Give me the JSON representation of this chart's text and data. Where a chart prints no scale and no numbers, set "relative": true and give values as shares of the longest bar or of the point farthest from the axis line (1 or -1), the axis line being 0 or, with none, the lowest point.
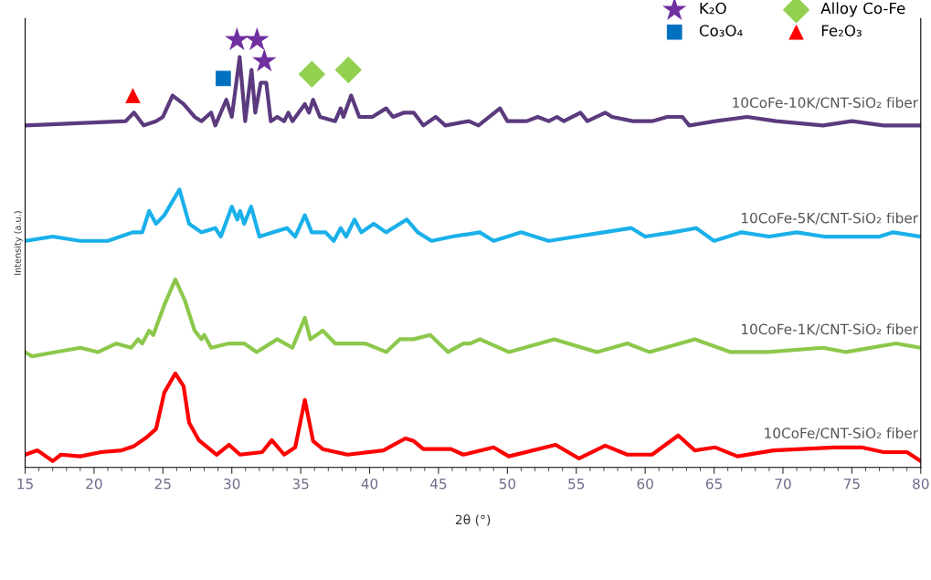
{
  "chart_data": {
    "type": "line",
    "relative": true,
    "xlabel": "2θ (°)",
    "ylabel": "Intensity (a.u.)",
    "xlim": [
      15,
      80
    ],
    "xticks": [
      15,
      20,
      25,
      30,
      35,
      40,
      45,
      50,
      55,
      60,
      65,
      70,
      75,
      80
    ],
    "grid": false,
    "legend": "top right",
    "line_style": "solid",
    "series": [
      {
        "name": "10CoFe-10K/CNT-SiO₂ fiber",
        "color": "#5b3a7e",
        "x": [
          15,
          22.3,
          22.9,
          23.6,
          24.5,
          25.0,
          25.7,
          26.5,
          27.3,
          27.8,
          28.5,
          28.8,
          29.6,
          30.0,
          30.57,
          30.97,
          31.43,
          31.7,
          32.1,
          32.5,
          32.83,
          33.3,
          33.8,
          34.1,
          34.4,
          35.3,
          35.6,
          35.9,
          36.4,
          37.5,
          37.9,
          38.1,
          38.66,
          39.25,
          40.2,
          41.2,
          41.7,
          42.5,
          43.2,
          43.9,
          44.8,
          45.5,
          47.2,
          47.9,
          49.46,
          50.0,
          51.4,
          52.2,
          53.0,
          53.6,
          54.1,
          55.3,
          55.8,
          57.1,
          57.6,
          59.1,
          60.5,
          61.6,
          62.7,
          63.2,
          65.1,
          67.4,
          69.5,
          72.9,
          75.0,
          77.3,
          80
        ],
        "values": [
          0.8,
          0.81,
          0.83,
          0.8,
          0.81,
          0.82,
          0.87,
          0.85,
          0.82,
          0.81,
          0.83,
          0.8,
          0.86,
          0.82,
          0.96,
          0.81,
          0.93,
          0.83,
          0.9,
          0.9,
          0.81,
          0.82,
          0.81,
          0.83,
          0.81,
          0.85,
          0.83,
          0.86,
          0.82,
          0.81,
          0.84,
          0.82,
          0.87,
          0.82,
          0.82,
          0.84,
          0.82,
          0.83,
          0.83,
          0.8,
          0.82,
          0.8,
          0.81,
          0.8,
          0.84,
          0.81,
          0.81,
          0.82,
          0.81,
          0.82,
          0.81,
          0.83,
          0.81,
          0.83,
          0.82,
          0.81,
          0.81,
          0.82,
          0.82,
          0.8,
          0.81,
          0.82,
          0.81,
          0.8,
          0.81,
          0.8,
          0.8
        ]
      },
      {
        "name": "10CoFe-5K/CNT-SiO₂ fiber",
        "color": "#1ab0ea",
        "x": [
          15,
          17,
          19,
          21,
          22.8,
          23.5,
          24.0,
          24.5,
          25.1,
          26.2,
          26.9,
          27.8,
          28.8,
          29.2,
          30.0,
          30.4,
          30.6,
          30.9,
          31.4,
          32.0,
          33,
          34,
          34.6,
          35.3,
          35.8,
          36.8,
          37.4,
          37.9,
          38.3,
          38.9,
          39.4,
          40.3,
          41.2,
          42.7,
          43.5,
          44.5,
          46,
          48,
          49,
          51,
          53,
          55,
          57,
          59,
          60,
          62,
          63.7,
          65,
          67,
          69,
          71,
          73,
          75,
          77,
          78,
          80
        ],
        "values": [
          0.53,
          0.54,
          0.53,
          0.53,
          0.55,
          0.55,
          0.6,
          0.57,
          0.59,
          0.65,
          0.57,
          0.55,
          0.56,
          0.54,
          0.61,
          0.58,
          0.6,
          0.57,
          0.61,
          0.54,
          0.55,
          0.56,
          0.54,
          0.59,
          0.55,
          0.55,
          0.53,
          0.56,
          0.54,
          0.58,
          0.55,
          0.57,
          0.55,
          0.58,
          0.55,
          0.53,
          0.54,
          0.55,
          0.53,
          0.55,
          0.53,
          0.54,
          0.55,
          0.56,
          0.54,
          0.55,
          0.56,
          0.53,
          0.55,
          0.54,
          0.55,
          0.54,
          0.54,
          0.54,
          0.55,
          0.54
        ]
      },
      {
        "name": "10CoFe-1K/CNT-SiO₂ fiber",
        "color": "#8cc84b",
        "x": [
          15,
          15.5,
          17.2,
          19.0,
          20.3,
          21.6,
          22.7,
          23.2,
          23.5,
          24.0,
          24.3,
          25.1,
          25.9,
          26.6,
          27.3,
          27.8,
          28.0,
          28.5,
          29.8,
          30.9,
          31.8,
          33.3,
          34.4,
          35.3,
          35.7,
          36.6,
          37.5,
          39.7,
          41.2,
          42.2,
          43.2,
          44.4,
          45.7,
          46.8,
          47.3,
          48.0,
          50.1,
          53.4,
          56.5,
          58.7,
          60.3,
          63.6,
          66.2,
          68.9,
          72.9,
          74.6,
          78.2,
          80
        ],
        "values": [
          0.27,
          0.26,
          0.27,
          0.28,
          0.27,
          0.29,
          0.28,
          0.3,
          0.29,
          0.32,
          0.31,
          0.38,
          0.44,
          0.39,
          0.32,
          0.3,
          0.31,
          0.28,
          0.29,
          0.29,
          0.27,
          0.3,
          0.28,
          0.35,
          0.3,
          0.32,
          0.29,
          0.29,
          0.27,
          0.3,
          0.3,
          0.31,
          0.27,
          0.29,
          0.29,
          0.3,
          0.27,
          0.3,
          0.27,
          0.29,
          0.27,
          0.3,
          0.27,
          0.27,
          0.28,
          0.27,
          0.29,
          0.28
        ]
      },
      {
        "name": "10CoFe/CNT-SiO₂ fiber",
        "color": "#ff0000",
        "x": [
          15,
          15.9,
          17.0,
          17.6,
          19.0,
          20.5,
          22.0,
          22.9,
          23.8,
          24.5,
          25.1,
          25.9,
          26.5,
          26.9,
          27.6,
          28.9,
          29.8,
          30.6,
          32.2,
          32.9,
          33.8,
          34.6,
          35.3,
          35.9,
          36.6,
          38.4,
          41.0,
          42.6,
          43.2,
          43.9,
          45.9,
          46.8,
          49.0,
          50.1,
          53.5,
          55.2,
          57.1,
          58.7,
          60.5,
          62.4,
          63.6,
          65.1,
          66.7,
          69.3,
          73.7,
          75.7,
          77.3,
          79.0,
          80
        ],
        "values": [
          0.03,
          0.04,
          0.015,
          0.03,
          0.026,
          0.036,
          0.04,
          0.05,
          0.07,
          0.09,
          0.175,
          0.22,
          0.19,
          0.105,
          0.064,
          0.03,
          0.053,
          0.03,
          0.036,
          0.064,
          0.03,
          0.047,
          0.158,
          0.062,
          0.043,
          0.03,
          0.04,
          0.068,
          0.062,
          0.043,
          0.043,
          0.03,
          0.047,
          0.026,
          0.053,
          0.021,
          0.051,
          0.03,
          0.03,
          0.075,
          0.04,
          0.047,
          0.026,
          0.04,
          0.047,
          0.047,
          0.036,
          0.036,
          0.015
        ]
      },
      {
        "type": "scatter",
        "name": "K₂O",
        "color": "#7030a0",
        "marker": "star",
        "x": [
          30.37,
          31.83,
          32.36
        ],
        "values": [
          1.0,
          1.0,
          0.95
        ]
      },
      {
        "type": "scatter",
        "name": "Co₃O₄",
        "color": "#0070c0",
        "marker": "square",
        "x": [
          29.38
        ],
        "values": [
          0.91
        ]
      },
      {
        "type": "scatter",
        "name": "Alloy Co-Fe",
        "color": "#92d050",
        "marker": "diamond",
        "x": [
          35.81,
          38.46
        ],
        "values": [
          0.92,
          0.93
        ]
      },
      {
        "type": "scatter",
        "name": "Fe₂O₃",
        "color": "#ff0000",
        "marker": "triangle",
        "x": [
          22.82
        ],
        "values": [
          0.87
        ]
      }
    ]
  }
}
